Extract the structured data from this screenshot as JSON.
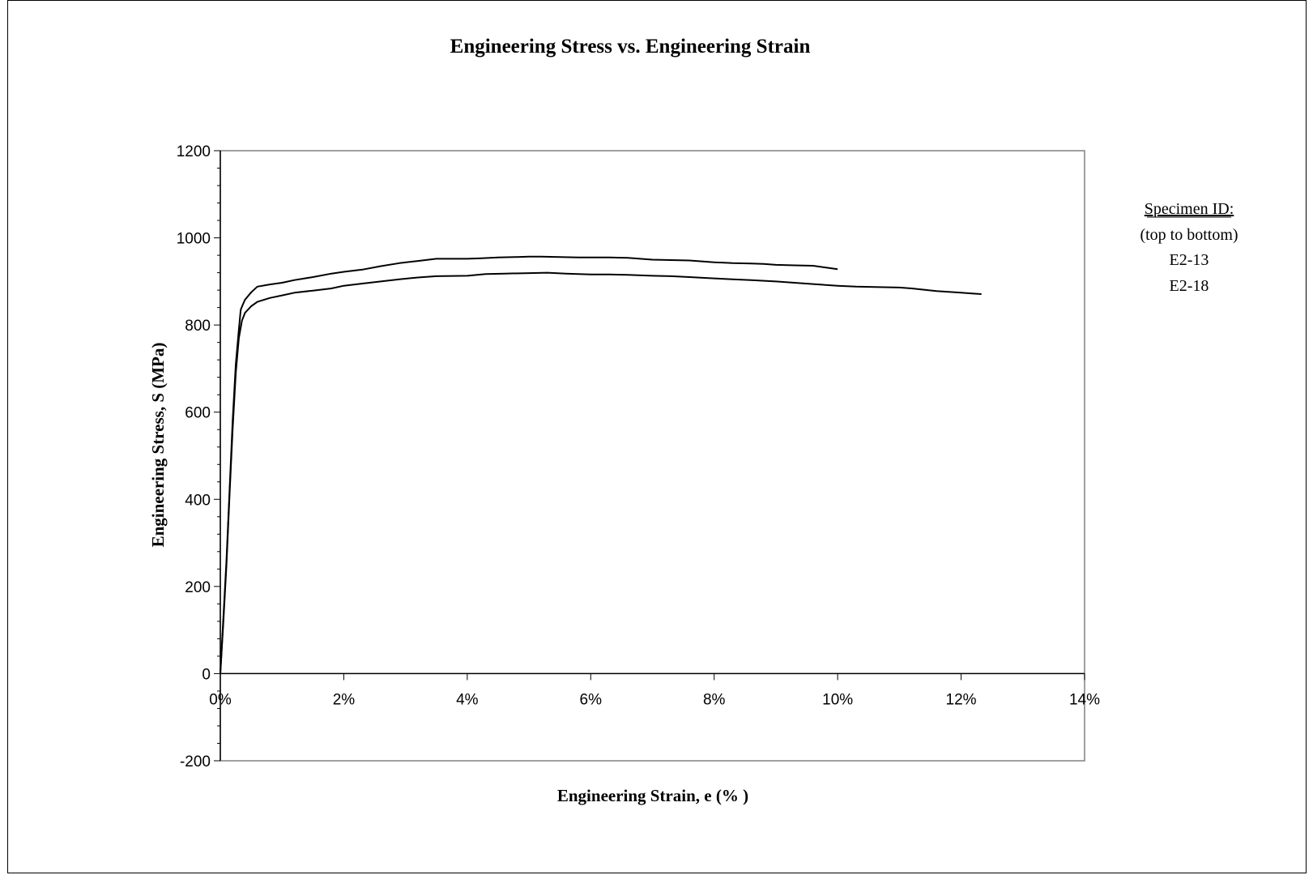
{
  "chart_data": {
    "type": "line",
    "title": "Engineering Stress vs. Engineering Strain",
    "xlabel": "Engineering Strain, e (% )",
    "ylabel": "Engineering Stress, S (MPa)",
    "xlim": [
      0,
      14
    ],
    "ylim": [
      -200,
      1200
    ],
    "x_ticks": [
      0,
      2,
      4,
      6,
      8,
      10,
      12,
      14
    ],
    "x_tick_labels": [
      "0%",
      "2%",
      "4%",
      "6%",
      "8%",
      "10%",
      "12%",
      "14%"
    ],
    "y_ticks": [
      -200,
      0,
      200,
      400,
      600,
      800,
      1000,
      1200
    ],
    "y_tick_labels": [
      "-200",
      "0",
      "200",
      "400",
      "600",
      "800",
      "1000",
      "1200"
    ],
    "grid": false,
    "legend": {
      "placement": "right",
      "heading": "Specimen ID:",
      "note": "(top to bottom)",
      "entries": [
        "E2-13",
        "E2-18"
      ]
    },
    "line_color": "#000000",
    "series": [
      {
        "name": "E2-13",
        "x": [
          0,
          0.05,
          0.1,
          0.15,
          0.2,
          0.25,
          0.3,
          0.33,
          0.36,
          0.4,
          0.5,
          0.6,
          0.8,
          1.0,
          1.2,
          1.5,
          1.8,
          2.0,
          2.3,
          2.6,
          2.9,
          3.2,
          3.5,
          3.8,
          4.0,
          4.2,
          4.5,
          4.8,
          5.0,
          5.2,
          5.5,
          5.8,
          6.0,
          6.3,
          6.6,
          6.8,
          7.0,
          7.3,
          7.6,
          7.8,
          8.0,
          8.3,
          8.6,
          8.8,
          9.0,
          9.3,
          9.6,
          9.8,
          10.0
        ],
        "y": [
          0,
          130,
          260,
          420,
          580,
          710,
          790,
          835,
          845,
          858,
          875,
          888,
          893,
          897,
          903,
          910,
          918,
          922,
          927,
          935,
          942,
          947,
          952,
          952,
          952,
          953,
          955,
          956,
          957,
          957,
          956,
          955,
          955,
          955,
          954,
          952,
          950,
          949,
          948,
          946,
          944,
          942,
          941,
          940,
          938,
          937,
          936,
          932,
          928
        ]
      },
      {
        "name": "E2-18",
        "x": [
          0,
          0.05,
          0.1,
          0.15,
          0.2,
          0.25,
          0.3,
          0.35,
          0.4,
          0.5,
          0.6,
          0.8,
          1.0,
          1.2,
          1.5,
          1.8,
          2.0,
          2.3,
          2.6,
          2.9,
          3.2,
          3.5,
          4.0,
          4.3,
          4.6,
          5.0,
          5.3,
          5.6,
          6.0,
          6.3,
          6.6,
          7.0,
          7.3,
          7.6,
          8.0,
          8.3,
          8.6,
          9.0,
          9.3,
          9.6,
          10.0,
          10.3,
          10.6,
          11.0,
          11.2,
          11.4,
          11.6,
          11.8,
          12.0,
          12.2,
          12.33
        ],
        "y": [
          0,
          120,
          250,
          410,
          560,
          690,
          770,
          810,
          828,
          843,
          853,
          862,
          868,
          874,
          879,
          884,
          890,
          895,
          900,
          905,
          909,
          912,
          913,
          917,
          918,
          919,
          920,
          918,
          916,
          916,
          915,
          913,
          912,
          910,
          907,
          905,
          903,
          900,
          897,
          894,
          890,
          888,
          887,
          886,
          884,
          881,
          878,
          876,
          874,
          872,
          871
        ]
      }
    ]
  }
}
